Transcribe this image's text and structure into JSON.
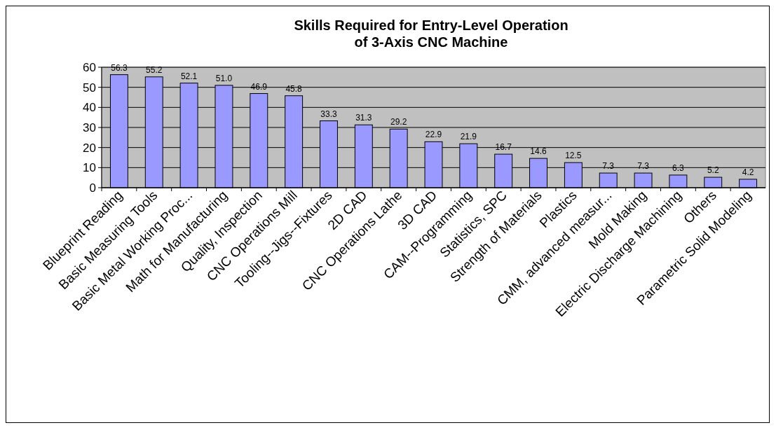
{
  "chart_data": {
    "type": "bar",
    "title": "Skills Required for Entry-Level Operation\nof 3-Axis CNC Machine",
    "categories": [
      "Blueprint Reading",
      "Basic Measuring Tools",
      "Basic Metal Working Proc...",
      "Math for Manufacturing",
      "Quality, Inspection",
      "CNC Operations Mill",
      "Tooling--Jigs--Fixtures",
      "2D CAD",
      "CNC Operations Lathe",
      "3D CAD",
      "CAM--Programming",
      "Statistics, SPC",
      "Strength of Materials",
      "Plastics",
      "CMM, advanced measur...",
      "Mold Making",
      "Electric Discharge Machining",
      "Others",
      "Parametric Solid Modeling"
    ],
    "values": [
      56.3,
      55.2,
      52.1,
      51.0,
      46.9,
      45.8,
      33.3,
      31.3,
      29.2,
      22.9,
      21.9,
      16.7,
      14.6,
      12.5,
      7.3,
      7.3,
      6.3,
      5.2,
      4.2
    ],
    "value_labels": [
      "56.3",
      "55.2",
      "52.1",
      "51.0",
      "46.9",
      "45.8",
      "33.3",
      "31.3",
      "29.2",
      "22.9",
      "21.9",
      "16.7",
      "14.6",
      "12.5",
      "7.3",
      "7.3",
      "6.3",
      "5.2",
      "4.2"
    ],
    "color": "#9999ff",
    "ylim": [
      0,
      60
    ],
    "yticks": [
      0,
      10,
      20,
      30,
      40,
      50,
      60
    ],
    "grid": "y"
  }
}
